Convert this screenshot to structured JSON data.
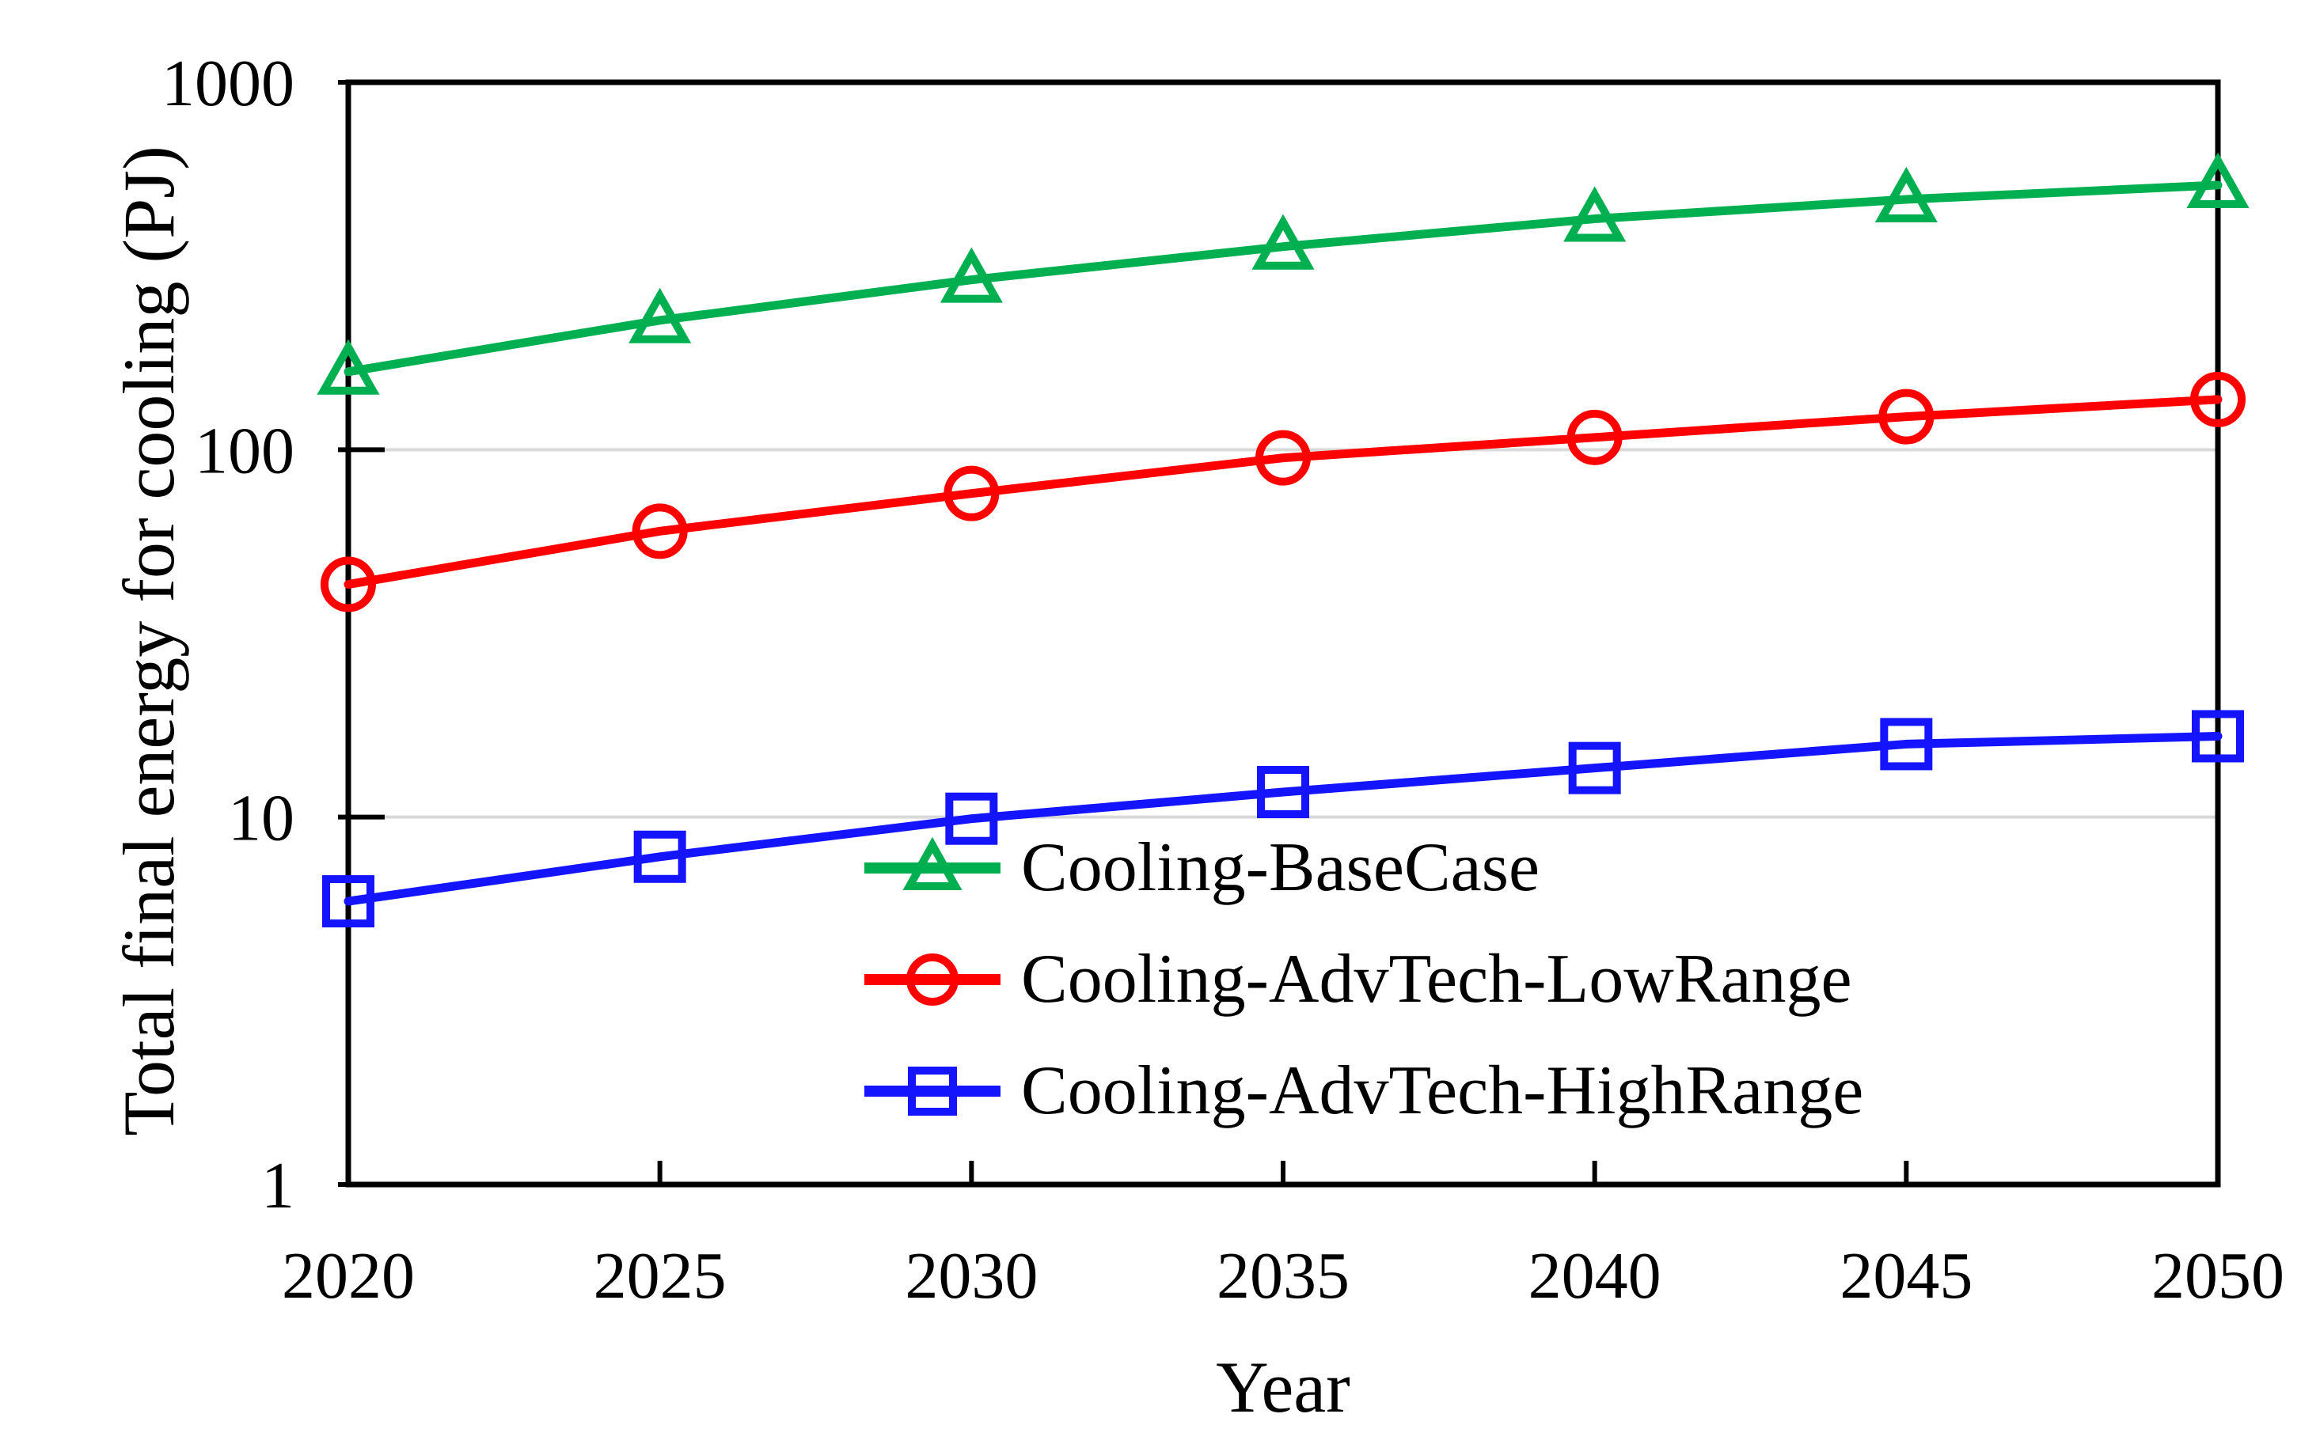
{
  "figure": {
    "background_color": "#FFFFFF",
    "axis_color": "#000000",
    "gridline_color": "#D9D9D9"
  },
  "chart_data": {
    "type": "line",
    "title": "",
    "xlabel": "Year",
    "ylabel": "Total final energy for cooling (PJ)",
    "x": [
      2020,
      2025,
      2030,
      2035,
      2040,
      2045,
      2050
    ],
    "x_tick_labels": [
      "2020",
      "2025",
      "2030",
      "2035",
      "2040",
      "2045",
      "2050"
    ],
    "xlim": [
      2020,
      2050
    ],
    "y_scale": "log10",
    "ylim": [
      1,
      1000
    ],
    "y_ticks": [
      1000,
      100,
      10,
      1
    ],
    "y_tick_labels": [
      "1000",
      "100",
      "10",
      "1"
    ],
    "y_gridlines": [
      100,
      10
    ],
    "grid": "horizontal-only",
    "legend_position": "inside-bottom-center",
    "series": [
      {
        "name": "Cooling-BaseCase",
        "color": "#00B050",
        "marker": "triangle",
        "values": [
          163,
          225,
          290,
          357,
          425,
          480,
          525
        ]
      },
      {
        "name": "Cooling-AdvTech-LowRange",
        "color": "#FF0000",
        "marker": "circle",
        "values": [
          43,
          60,
          76,
          95,
          108,
          123,
          137
        ]
      },
      {
        "name": "Cooling-AdvTech-HighRange",
        "color": "#1414FF",
        "marker": "square",
        "values": [
          5.9,
          7.8,
          9.9,
          11.7,
          13.6,
          15.8,
          16.6
        ]
      }
    ]
  }
}
